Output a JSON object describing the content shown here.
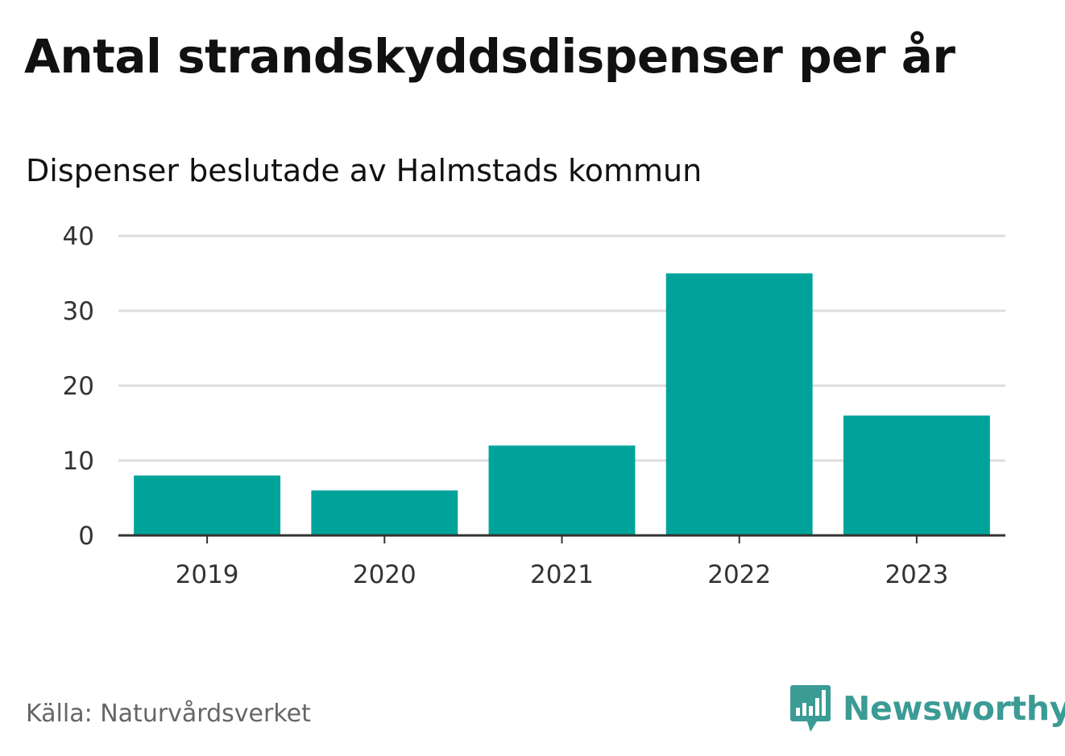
{
  "header": {
    "title": "Antal strandskyddsdispenser per år",
    "subtitle": "Dispenser beslutade av Halmstads kommun"
  },
  "footer": {
    "source": "Källa: Naturvårdsverket",
    "brand": "Newsworthy",
    "brand_icon": "speech-bubble-bar-chart-icon"
  },
  "colors": {
    "bar": "#00a39a",
    "grid": "#dddddd",
    "axis": "#333333",
    "brand": "#3b9b95"
  },
  "chart_data": {
    "type": "bar",
    "title": "Antal strandskyddsdispenser per år",
    "subtitle": "Dispenser beslutade av Halmstads kommun",
    "categories": [
      "2019",
      "2020",
      "2021",
      "2022",
      "2023"
    ],
    "values": [
      8,
      6,
      12,
      35,
      16
    ],
    "xlabel": "",
    "ylabel": "",
    "ylim": [
      0,
      40
    ],
    "yticks": [
      0,
      10,
      20,
      30,
      40
    ],
    "grid": true,
    "legend": "none"
  }
}
